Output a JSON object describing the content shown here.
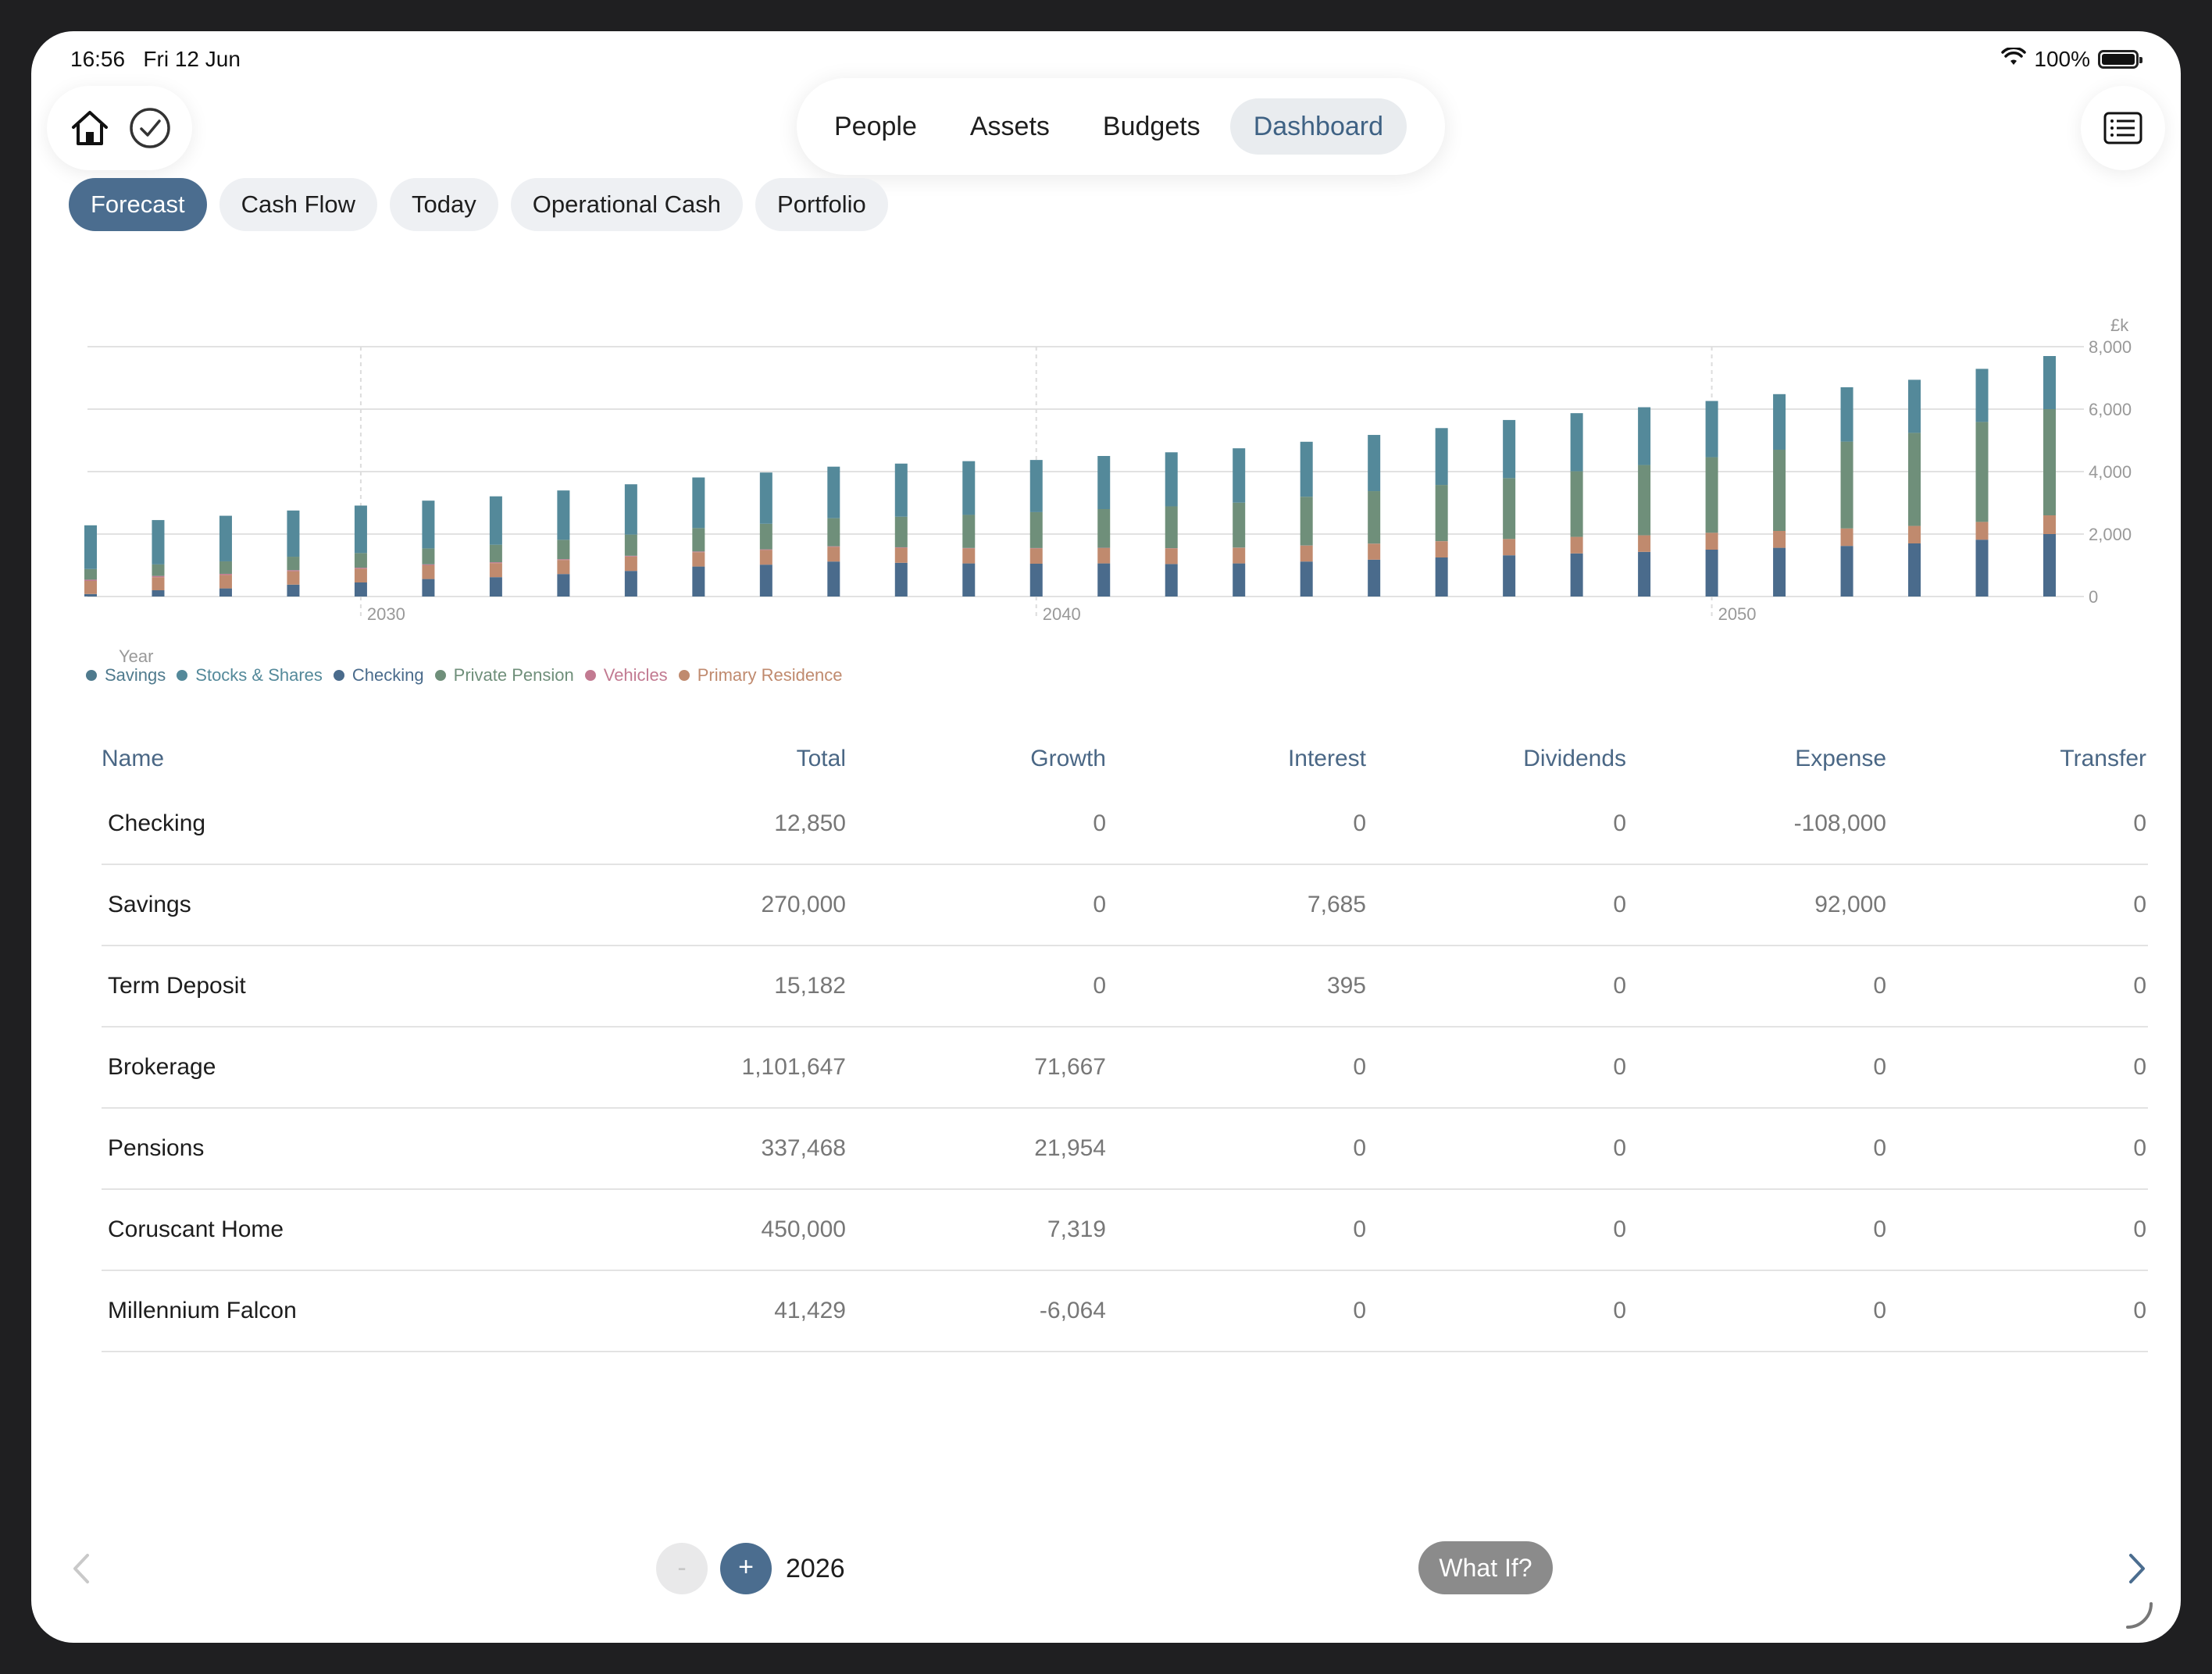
{
  "status": {
    "time": "16:56",
    "date": "Fri 12 Jun",
    "battery": "100%"
  },
  "top_nav": {
    "tabs": [
      "People",
      "Assets",
      "Budgets",
      "Dashboard"
    ],
    "active": "Dashboard"
  },
  "sub_tabs": {
    "tabs": [
      "Forecast",
      "Cash Flow",
      "Today",
      "Operational Cash",
      "Portfolio"
    ],
    "active": "Forecast"
  },
  "chart_data": {
    "type": "bar",
    "stacked": true,
    "xlabel": "Year",
    "ylabel": "£k",
    "ylim": [
      0,
      8000
    ],
    "yticks": [
      "0",
      "2,000",
      "4,000",
      "6,000",
      "8,000"
    ],
    "xticks": [
      "2030",
      "2040",
      "2050"
    ],
    "categories": [
      2026,
      2027,
      2028,
      2029,
      2030,
      2031,
      2032,
      2033,
      2034,
      2035,
      2036,
      2037,
      2038,
      2039,
      2040,
      2041,
      2042,
      2043,
      2044,
      2045,
      2046,
      2047,
      2048,
      2049,
      2050,
      2051,
      2052,
      2053,
      2054,
      2055
    ],
    "series": [
      {
        "name": "Checking",
        "color": "#4a6b8c",
        "values": [
          80,
          200,
          260,
          380,
          450,
          560,
          620,
          720,
          820,
          960,
          1020,
          1120,
          1080,
          1060,
          1050,
          1060,
          1040,
          1060,
          1120,
          1180,
          1250,
          1320,
          1380,
          1430,
          1500,
          1560,
          1620,
          1700,
          1820,
          2000
        ]
      },
      {
        "name": "Primary Residence",
        "color": "#c08a6e",
        "values": [
          420,
          420,
          430,
          430,
          440,
          440,
          450,
          450,
          460,
          460,
          470,
          470,
          480,
          480,
          490,
          490,
          500,
          500,
          510,
          510,
          520,
          520,
          530,
          530,
          540,
          540,
          560,
          560,
          570,
          600
        ]
      },
      {
        "name": "Vehicles",
        "color": "#c27a91",
        "values": [
          40,
          38,
          36,
          34,
          32,
          30,
          28,
          26,
          24,
          22,
          20,
          18,
          16,
          14,
          12,
          10,
          8,
          6,
          5,
          4,
          3,
          2,
          1,
          1,
          1,
          0,
          0,
          0,
          0,
          0
        ]
      },
      {
        "name": "Private Pension",
        "color": "#6f8f7a",
        "values": [
          340,
          370,
          400,
          430,
          470,
          510,
          560,
          620,
          680,
          750,
          820,
          900,
          980,
          1060,
          1150,
          1240,
          1340,
          1440,
          1560,
          1680,
          1800,
          1950,
          2100,
          2250,
          2420,
          2600,
          2780,
          2980,
          3200,
          3400
        ]
      },
      {
        "name": "Stocks & Shares",
        "color": "#54899a",
        "values": [
          1400,
          1420,
          1460,
          1480,
          1520,
          1530,
          1550,
          1580,
          1610,
          1620,
          1640,
          1650,
          1700,
          1720,
          1670,
          1700,
          1730,
          1740,
          1760,
          1800,
          1820,
          1860,
          1860,
          1850,
          1800,
          1780,
          1740,
          1700,
          1700,
          1700
        ]
      },
      {
        "name": "Savings",
        "color": "#4f7a8d",
        "values": [
          0,
          0,
          0,
          0,
          0,
          0,
          0,
          0,
          0,
          0,
          0,
          0,
          0,
          0,
          0,
          0,
          0,
          0,
          0,
          0,
          0,
          0,
          0,
          0,
          0,
          0,
          0,
          0,
          0,
          0
        ]
      }
    ],
    "legend": [
      "Savings",
      "Stocks & Shares",
      "Checking",
      "Private Pension",
      "Vehicles",
      "Primary Residence"
    ],
    "legend_colors": [
      "#4f7a8d",
      "#54899a",
      "#4a6b8c",
      "#6f8f7a",
      "#c27a91",
      "#c08a6e"
    ],
    "legend_placement": "bottom-left",
    "grid": true
  },
  "table": {
    "headers": [
      "Name",
      "Total",
      "Growth",
      "Interest",
      "Dividends",
      "Expense",
      "Transfer"
    ],
    "rows": [
      [
        "Checking",
        "12,850",
        "0",
        "0",
        "0",
        "-108,000",
        "0"
      ],
      [
        "Savings",
        "270,000",
        "0",
        "7,685",
        "0",
        "92,000",
        "0"
      ],
      [
        "Term Deposit",
        "15,182",
        "0",
        "395",
        "0",
        "0",
        "0"
      ],
      [
        "Brokerage",
        "1,101,647",
        "71,667",
        "0",
        "0",
        "0",
        "0"
      ],
      [
        "Pensions",
        "337,468",
        "21,954",
        "0",
        "0",
        "0",
        "0"
      ],
      [
        "Coruscant Home",
        "450,000",
        "7,319",
        "0",
        "0",
        "0",
        "0"
      ],
      [
        "Millennium Falcon",
        "41,429",
        "-6,064",
        "0",
        "0",
        "0",
        "0"
      ]
    ]
  },
  "footer": {
    "minus": "-",
    "plus": "+",
    "year": "2026",
    "what_if": "What If?"
  }
}
